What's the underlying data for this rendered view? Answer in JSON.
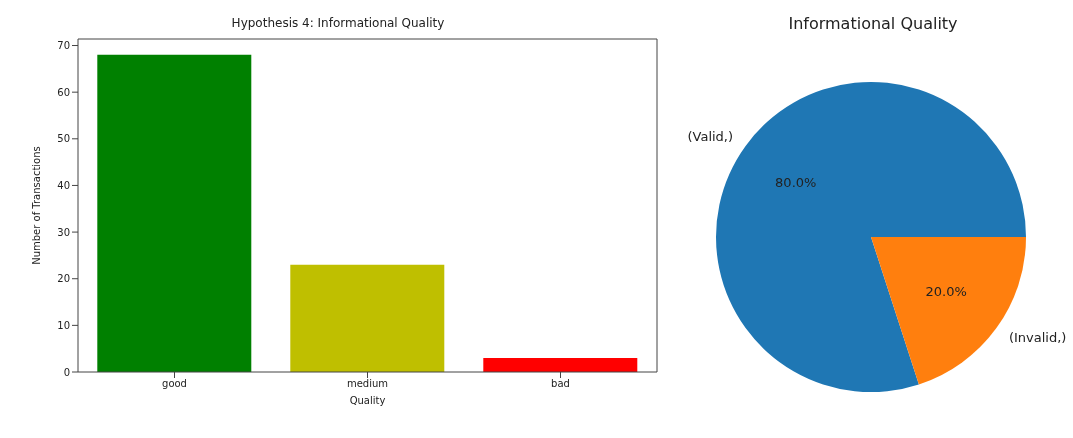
{
  "chart_data": [
    {
      "type": "bar",
      "title": "Hypothesis 4: Informational Quality",
      "xlabel": "Quality",
      "ylabel": "Number of Transactions",
      "categories": [
        "good",
        "medium",
        "bad"
      ],
      "values": [
        68,
        23,
        3
      ],
      "colors": [
        "#008000",
        "#bfbf00",
        "#ff0000"
      ],
      "ylim": [
        0,
        71.4
      ],
      "yticks": [
        0,
        10,
        20,
        30,
        40,
        50,
        60,
        70
      ],
      "grid": false,
      "legend": false
    },
    {
      "type": "pie",
      "title": "Informational Quality",
      "categories": [
        "(Valid,)",
        "(Invalid,)"
      ],
      "values": [
        80,
        20
      ],
      "colors": [
        "#1f77b4",
        "#ff7f0e"
      ],
      "value_labels": [
        "80.0%",
        "20.0%"
      ],
      "legend": false
    }
  ]
}
